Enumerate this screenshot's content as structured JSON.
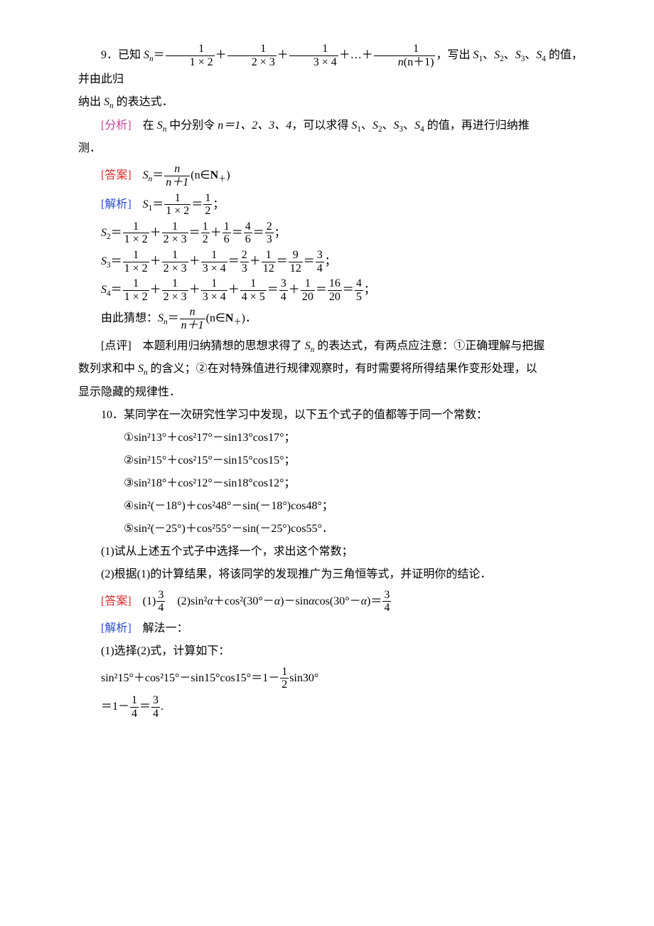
{
  "q9": {
    "num": "9．",
    "lead": "已知 ",
    "Sn": "S",
    "sub_n": "n",
    "eq": "＝",
    "f1_num": "1",
    "f1_den": "1 × 2",
    "plus": "＋",
    "f2_num": "1",
    "f2_den": "2 × 3",
    "f3_num": "1",
    "f3_den": "3 × 4",
    "dots": "＋…＋",
    "fk_num": "1",
    "fk_den_l": "n",
    "fk_den_r": "(n＋1)",
    "tail1": "，写出 ",
    "S1": "S",
    "s1sub": "1",
    "sep": "、",
    "s2sub": "2",
    "s3sub": "3",
    "s4sub": "4",
    "tail2": " 的值，并由此归",
    "line2a": "纳出 ",
    "line2b": " 的表达式．",
    "analysis_label": "[分析]　",
    "analysis_a": "在 ",
    "analysis_b": " 中分别令 ",
    "n_eq": "n＝1、2、3、4",
    "analysis_c": "，可以求得 ",
    "analysis_d": " 的值，再进行归纳推",
    "analysis_line2": "测．",
    "answer_label": "[答案]　",
    "ans_a": "S",
    "ans_a_sub": "n",
    "ans_eq": "＝",
    "ans_num": "n",
    "ans_den": "n＋1",
    "ans_tail": "(n∈",
    "ans_N": "N",
    "ans_plus_sub": "＋",
    "ans_close": ")",
    "explain_label": "[解析]　",
    "s1line_a": "S",
    "s1line_sub": "1",
    "s1_eq": "＝",
    "s1_f1n": "1",
    "s1_f1d": "1 × 2",
    "s1_eq2": "＝",
    "s1_f2n": "1",
    "s1_f2d": "2",
    "s1_semi": "；",
    "s2_a": "S",
    "s2_sub": "2",
    "s2_eq": "＝",
    "s2_t1n": "1",
    "s2_t1d": "1 × 2",
    "s2_t2n": "1",
    "s2_t2d": "2 × 3",
    "s2_r1n": "1",
    "s2_r1d": "2",
    "s2_r2n": "1",
    "s2_r2d": "6",
    "s2_r3n": "4",
    "s2_r3d": "6",
    "s2_r4n": "2",
    "s2_r4d": "3",
    "s3_a": "S",
    "s3_sub": "3",
    "s3_eq": "＝",
    "s3_t1n": "1",
    "s3_t1d": "1 × 2",
    "s3_t2n": "1",
    "s3_t2d": "2 × 3",
    "s3_t3n": "1",
    "s3_t3d": "3 × 4",
    "s3_r1n": "2",
    "s3_r1d": "3",
    "s3_r2n": "1",
    "s3_r2d": "12",
    "s3_r3n": "9",
    "s3_r3d": "12",
    "s3_r4n": "3",
    "s3_r4d": "4",
    "s4_a": "S",
    "s4_sub": "4",
    "s4_eq": "＝",
    "s4_t1n": "1",
    "s4_t1d": "1 × 2",
    "s4_t2n": "1",
    "s4_t2d": "2 × 3",
    "s4_t3n": "1",
    "s4_t3d": "3 × 4",
    "s4_t4n": "1",
    "s4_t4d": "4 × 5",
    "s4_r1n": "3",
    "s4_r1d": "4",
    "s4_r2n": "1",
    "s4_r2d": "20",
    "s4_r3n": "16",
    "s4_r3d": "20",
    "s4_r4n": "4",
    "s4_r4d": "5",
    "guess_a": "由此猜想：",
    "guess_b": "S",
    "guess_sub": "n",
    "guess_eq": "＝",
    "guess_num": "n",
    "guess_den": "n＋1",
    "guess_tail": "(n∈",
    "guess_N": "N",
    "guess_close": ")．",
    "comment_label": "[点评]　",
    "comment_1": "本题利用归纳猜想的思想求得了 ",
    "comment_2": " 的表达式，有两点应注意：①正确理解与把握",
    "comment_line2a": "数列求和中 ",
    "comment_line2b": " 的含义；②在对特殊值进行规律观察时，有时需要将所得结果作变形处理，以",
    "comment_line3": "显示隐藏的规律性．"
  },
  "q10": {
    "num": "10．",
    "lead": "某同学在一次研究性学习中发现，以下五个式子的值都等于同一个常数：",
    "l1_c": "①",
    "l1": "sin²13°＋cos²17°－sin13°cos17°；",
    "l2_c": "②",
    "l2": "sin²15°＋cos²15°－sin15°cos15°；",
    "l3_c": "③",
    "l3": "sin²18°＋cos²12°－sin18°cos12°；",
    "l4_c": "④",
    "l4": "sin²(－18°)＋cos²48°－sin(－18°)cos48°；",
    "l5_c": "⑤",
    "l5": "sin²(－25°)＋cos²55°－sin(－25°)cos55°．",
    "p1": "(1)试从上述五个式子中选择一个，求出这个常数；",
    "p2": "(2)根据(1)的计算结果，将该同学的发现推广为三角恒等式，并证明你的结论．",
    "ans_label": "[答案]　",
    "ans1_a": "(1)",
    "ans1_num": "3",
    "ans1_den": "4",
    "ans2_a": "　(2)sin²",
    "alpha": "α",
    "ans2_b": "＋cos²(30°－",
    "ans2_c": ")－sin",
    "ans2_d": "cos(30°－",
    "ans2_e": ")＝",
    "ans2_num": "3",
    "ans2_den": "4",
    "explain_label": "[解析]　",
    "explain_a": "解法一：",
    "step1": "(1)选择(2)式，计算如下：",
    "eq1_a": "sin²15°＋cos²15°－sin15°cos15°＝1－",
    "eq1_num": "1",
    "eq1_den": "2",
    "eq1_b": "sin30°",
    "eq2_a": "＝1－",
    "eq2_f1n": "1",
    "eq2_f1d": "4",
    "eq2_eq": "＝",
    "eq2_f2n": "3",
    "eq2_f2d": "4",
    "eq2_dot": "."
  }
}
